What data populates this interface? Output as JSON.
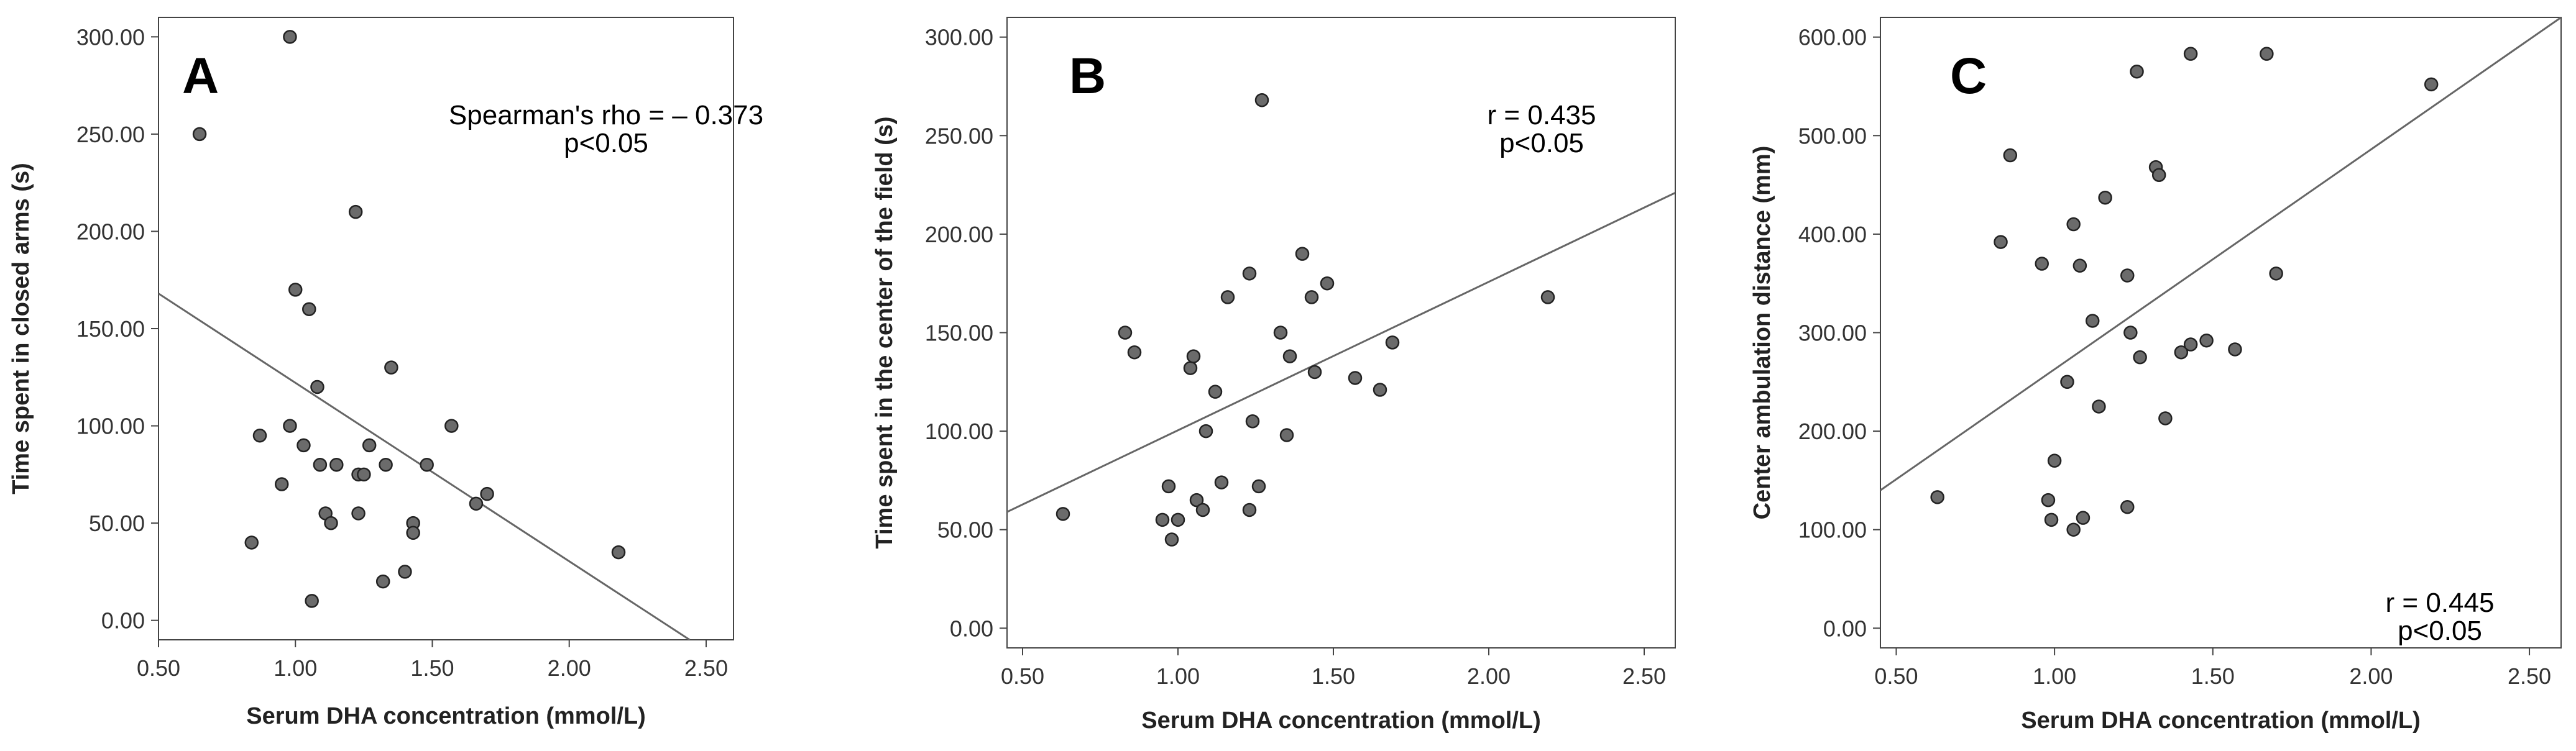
{
  "chart_data": [
    {
      "type": "scatter",
      "panel_label": "A",
      "xlabel": "Serum DHA concentration (mmol/L)",
      "ylabel": "Time spent in closed arms (s)",
      "xlim": [
        0.5,
        2.6
      ],
      "ylim": [
        -10,
        310
      ],
      "xticks": [
        "0.50",
        "1.00",
        "1.50",
        "2.00",
        "2.50"
      ],
      "xtick_values": [
        0.5,
        1.0,
        1.5,
        2.0,
        2.5
      ],
      "yticks": [
        "0.00",
        "50.00",
        "100.00",
        "150.00",
        "200.00",
        "250.00",
        "300.00"
      ],
      "ytick_values": [
        0,
        50,
        100,
        150,
        200,
        250,
        300
      ],
      "annotation_lines": [
        "Spearman's rho = – 0.373",
        "p<0.05"
      ],
      "fit_line": {
        "x": [
          0.5,
          2.44
        ],
        "y": [
          168,
          -10
        ]
      },
      "points": [
        [
          0.65,
          250
        ],
        [
          0.98,
          300
        ],
        [
          0.84,
          40
        ],
        [
          0.87,
          95
        ],
        [
          0.95,
          70
        ],
        [
          0.98,
          100
        ],
        [
          1.0,
          170
        ],
        [
          1.03,
          90
        ],
        [
          1.05,
          160
        ],
        [
          1.06,
          10
        ],
        [
          1.08,
          120
        ],
        [
          1.09,
          80
        ],
        [
          1.11,
          55
        ],
        [
          1.13,
          50
        ],
        [
          1.15,
          80
        ],
        [
          1.22,
          210
        ],
        [
          1.23,
          75
        ],
        [
          1.23,
          55
        ],
        [
          1.25,
          75
        ],
        [
          1.27,
          90
        ],
        [
          1.32,
          20
        ],
        [
          1.33,
          80
        ],
        [
          1.35,
          130
        ],
        [
          1.4,
          25
        ],
        [
          1.43,
          50
        ],
        [
          1.43,
          45
        ],
        [
          1.48,
          80
        ],
        [
          1.57,
          100
        ],
        [
          1.66,
          60
        ],
        [
          1.7,
          65
        ],
        [
          2.18,
          35
        ]
      ]
    },
    {
      "type": "scatter",
      "panel_label": "B",
      "xlabel": "Serum DHA concentration (mmol/L)",
      "ylabel": "Time spent in the center of the field (s)",
      "xlim": [
        0.45,
        2.6
      ],
      "ylim": [
        -10,
        310
      ],
      "xticks": [
        "0.50",
        "1.00",
        "1.50",
        "2.00",
        "2.50"
      ],
      "xtick_values": [
        0.5,
        1.0,
        1.5,
        2.0,
        2.5
      ],
      "yticks": [
        "0.00",
        "50.00",
        "100.00",
        "150.00",
        "200.00",
        "250.00",
        "300.00"
      ],
      "ytick_values": [
        0,
        50,
        100,
        150,
        200,
        250,
        300
      ],
      "annotation_lines": [
        "r = 0.435",
        "p<0.05"
      ],
      "fit_line": {
        "x": [
          0.45,
          2.6
        ],
        "y": [
          59,
          221
        ]
      },
      "points": [
        [
          0.63,
          58
        ],
        [
          0.83,
          150
        ],
        [
          0.86,
          140
        ],
        [
          0.95,
          55
        ],
        [
          0.97,
          72
        ],
        [
          0.98,
          45
        ],
        [
          1.0,
          55
        ],
        [
          1.04,
          132
        ],
        [
          1.05,
          138
        ],
        [
          1.06,
          65
        ],
        [
          1.08,
          60
        ],
        [
          1.09,
          100
        ],
        [
          1.12,
          120
        ],
        [
          1.14,
          74
        ],
        [
          1.16,
          168
        ],
        [
          1.23,
          180
        ],
        [
          1.23,
          60
        ],
        [
          1.24,
          105
        ],
        [
          1.26,
          72
        ],
        [
          1.27,
          268
        ],
        [
          1.33,
          150
        ],
        [
          1.35,
          98
        ],
        [
          1.36,
          138
        ],
        [
          1.4,
          190
        ],
        [
          1.43,
          168
        ],
        [
          1.44,
          130
        ],
        [
          1.48,
          175
        ],
        [
          1.57,
          127
        ],
        [
          1.65,
          121
        ],
        [
          1.69,
          145
        ],
        [
          2.19,
          168
        ]
      ]
    },
    {
      "type": "scatter",
      "panel_label": "C",
      "xlabel": "Serum DHA concentration (mmol/L)",
      "ylabel": "Center ambulation distance (mm)",
      "xlim": [
        0.45,
        2.6
      ],
      "ylim": [
        -20,
        620
      ],
      "xticks": [
        "0.50",
        "1.00",
        "1.50",
        "2.00",
        "2.50"
      ],
      "xtick_values": [
        0.5,
        1.0,
        1.5,
        2.0,
        2.5
      ],
      "yticks": [
        "0.00",
        "100.00",
        "200.00",
        "300.00",
        "400.00",
        "500.00",
        "600.00"
      ],
      "ytick_values": [
        0,
        100,
        200,
        300,
        400,
        500,
        600
      ],
      "annotation_lines": [
        "r = 0.445",
        "p<0.05"
      ],
      "fit_line": {
        "x": [
          0.45,
          2.6
        ],
        "y": [
          140,
          620
        ]
      },
      "points": [
        [
          0.63,
          133
        ],
        [
          0.83,
          392
        ],
        [
          0.86,
          480
        ],
        [
          0.96,
          370
        ],
        [
          0.98,
          130
        ],
        [
          0.99,
          110
        ],
        [
          1.0,
          170
        ],
        [
          1.04,
          250
        ],
        [
          1.06,
          410
        ],
        [
          1.06,
          100
        ],
        [
          1.08,
          368
        ],
        [
          1.09,
          112
        ],
        [
          1.12,
          312
        ],
        [
          1.14,
          225
        ],
        [
          1.16,
          437
        ],
        [
          1.23,
          358
        ],
        [
          1.23,
          123
        ],
        [
          1.24,
          300
        ],
        [
          1.26,
          565
        ],
        [
          1.27,
          275
        ],
        [
          1.32,
          468
        ],
        [
          1.33,
          460
        ],
        [
          1.35,
          213
        ],
        [
          1.4,
          280
        ],
        [
          1.43,
          583
        ],
        [
          1.43,
          288
        ],
        [
          1.48,
          292
        ],
        [
          1.57,
          283
        ],
        [
          1.67,
          583
        ],
        [
          1.7,
          360
        ],
        [
          2.19,
          552
        ]
      ]
    }
  ]
}
